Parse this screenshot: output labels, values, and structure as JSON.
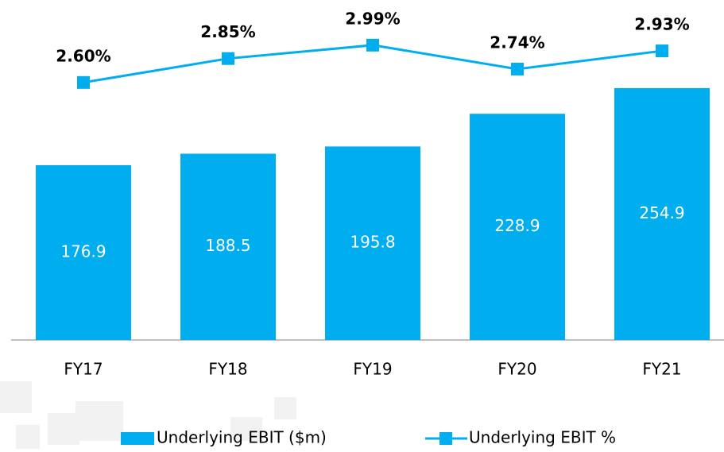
{
  "chart_data": {
    "type": "bar_line",
    "categories": [
      "FY17",
      "FY18",
      "FY19",
      "FY20",
      "FY21"
    ],
    "series": [
      {
        "name": "Underlying EBIT ($m)",
        "type": "bar",
        "color": "#00aeef",
        "values": [
          176.9,
          188.5,
          195.8,
          228.9,
          254.9
        ]
      },
      {
        "name": "Underlying EBIT %",
        "type": "line",
        "axis": "y2",
        "color": "#00aeef",
        "values": [
          2.6,
          2.85,
          2.99,
          2.74,
          2.93
        ],
        "value_labels": [
          "2.60%",
          "2.85%",
          "2.99%",
          "2.74%",
          "2.93%"
        ]
      }
    ],
    "ylim": [
      0,
      340
    ],
    "y2lim": [
      -0.09,
      3.42
    ],
    "legend": "bottom"
  }
}
